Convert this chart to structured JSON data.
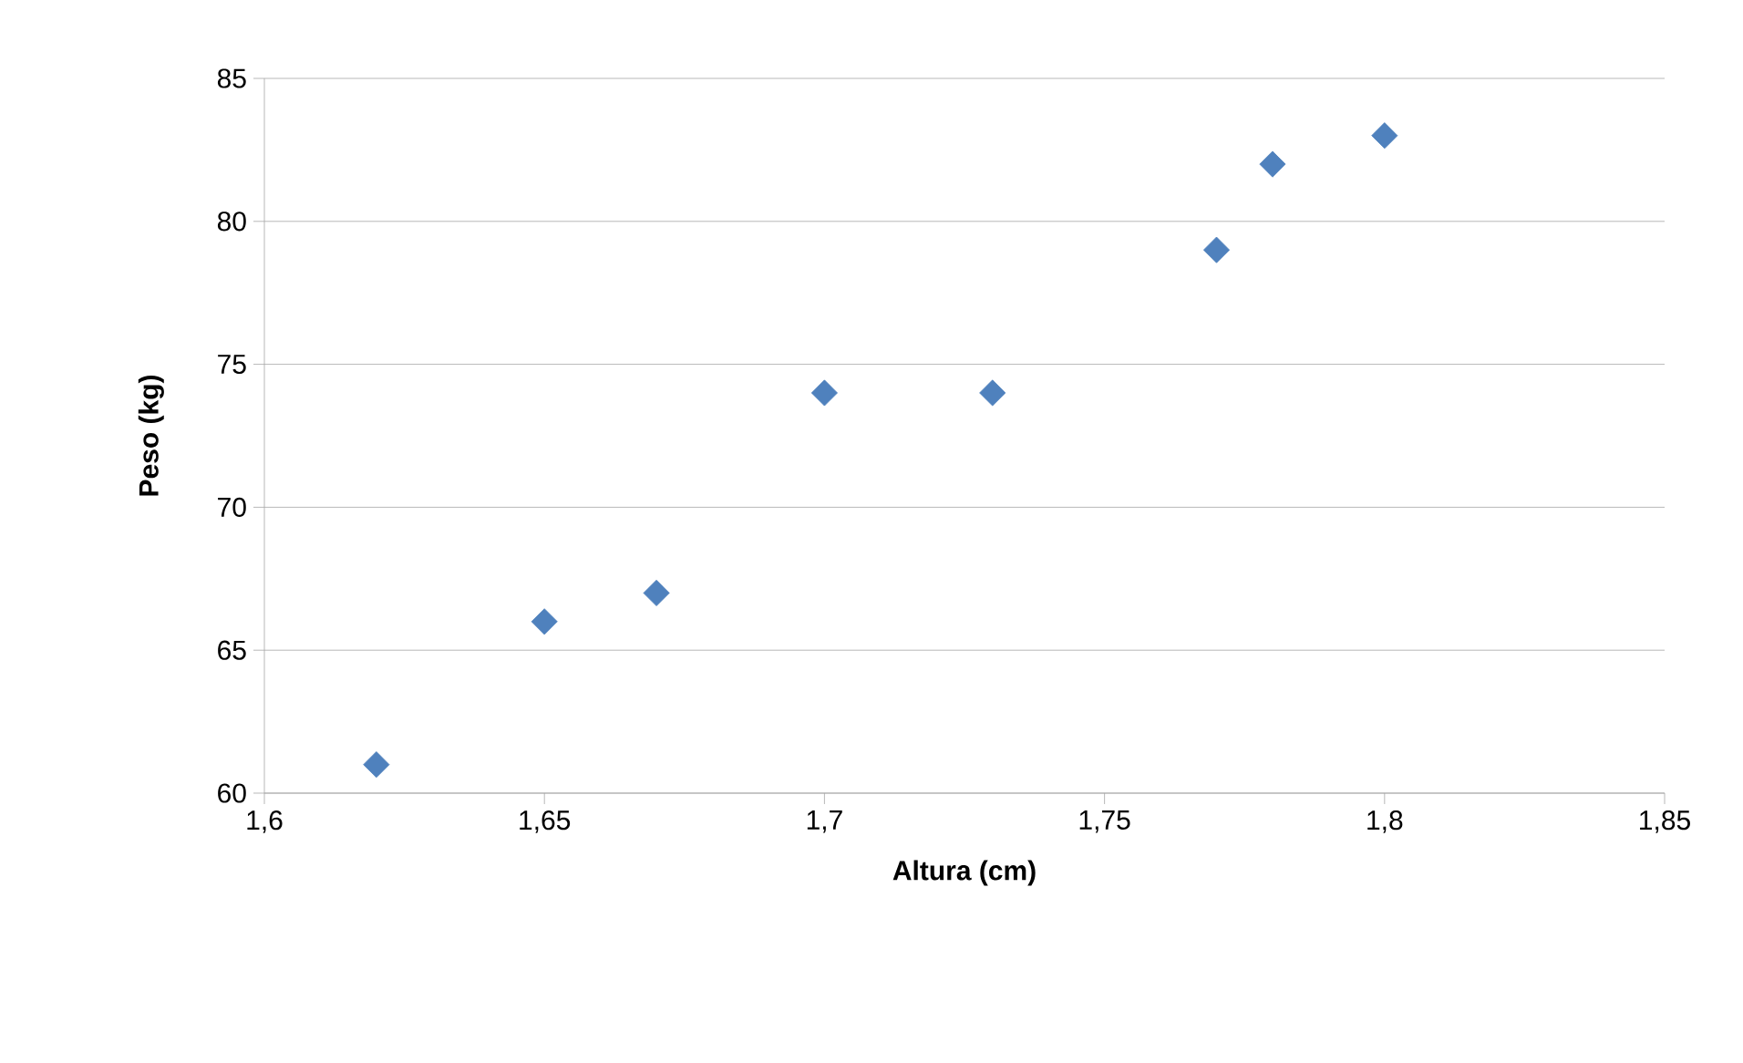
{
  "chart_data": {
    "type": "scatter",
    "xlabel": "Altura (cm)",
    "ylabel": "Peso (kg)",
    "x": [
      1.62,
      1.65,
      1.67,
      1.7,
      1.73,
      1.77,
      1.78,
      1.8
    ],
    "values": [
      61,
      66,
      67,
      74,
      74,
      79,
      82,
      83
    ],
    "color": "#4f81bd",
    "marker": "diamond",
    "xlim": [
      1.6,
      1.85
    ],
    "xticks": [
      {
        "value": 1.6,
        "label": "1,6"
      },
      {
        "value": 1.65,
        "label": "1,65"
      },
      {
        "value": 1.7,
        "label": "1,7"
      },
      {
        "value": 1.75,
        "label": "1,75"
      },
      {
        "value": 1.8,
        "label": "1,8"
      },
      {
        "value": 1.85,
        "label": "1,85"
      }
    ],
    "ylim": [
      60,
      85
    ],
    "yticks": [
      60,
      65,
      70,
      75,
      80,
      85
    ],
    "grid": "y"
  }
}
